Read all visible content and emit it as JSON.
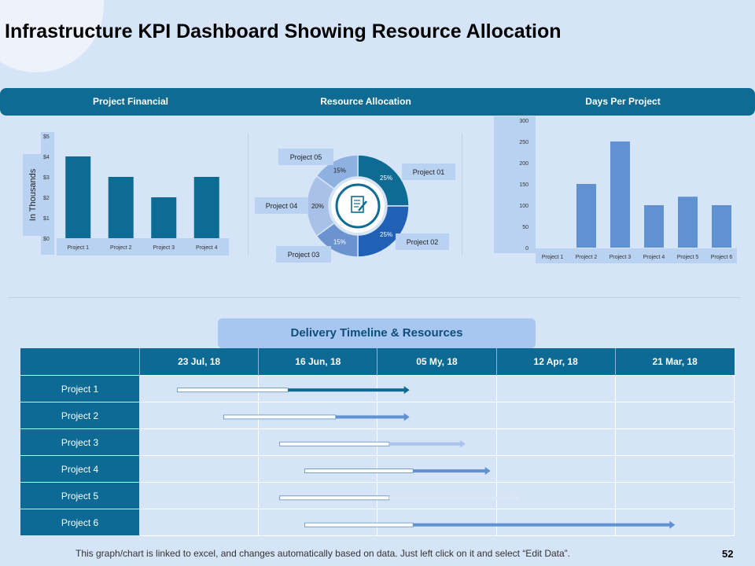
{
  "title": "Infrastructure KPI Dashboard Showing Resource Allocation",
  "header": {
    "col1": "Project Financial",
    "col2": "Resource Allocation",
    "col3": "Days Per Project"
  },
  "colors": {
    "dark_blue": "#0e6b93",
    "mid_blue": "#6092d1",
    "light_bg": "#d6e4f7",
    "label_bg": "#b9d2f2"
  },
  "chart_data": [
    {
      "type": "bar",
      "name": "Project Financial",
      "categories": [
        "Project 1",
        "Project 2",
        "Project 3",
        "Project 4"
      ],
      "values": [
        4,
        3,
        2,
        3
      ],
      "tick_labels": [
        "$0",
        "$1",
        "$2",
        "$3",
        "$4",
        "$5"
      ],
      "ylabel": "In Thousands",
      "ylim": [
        0,
        5
      ]
    },
    {
      "type": "pie",
      "name": "Resource Allocation",
      "labels": [
        "Project 01",
        "Project 02",
        "Project 03",
        "Project 04",
        "Project 05"
      ],
      "values": [
        25,
        25,
        15,
        20,
        15
      ],
      "value_labels": [
        "25%",
        "25%",
        "15%",
        "20%",
        "15%"
      ],
      "colors": [
        "#0e6b93",
        "#2060b5",
        "#6a93cf",
        "#a9c1e6",
        "#8fb1e2"
      ]
    },
    {
      "type": "bar",
      "name": "Days Per Project",
      "categories": [
        "Project 1",
        "Project 2",
        "Project 3",
        "Project 4",
        "Project 5",
        "Project 6"
      ],
      "values": [
        0,
        150,
        250,
        100,
        120,
        100
      ],
      "tick_labels": [
        "0",
        "50",
        "100",
        "150",
        "200",
        "250",
        "300"
      ],
      "ylim": [
        0,
        300
      ]
    },
    {
      "type": "gantt",
      "name": "Delivery Timeline & Resources",
      "columns": [
        "23 Jul, 18",
        "16 Jun, 18",
        "05 My, 18",
        "12 Apr, 18",
        "21 Mar, 18"
      ],
      "rows": [
        {
          "label": "Project 1",
          "start": 0.32,
          "split": 1.25,
          "end": 2.27,
          "color": "#0e6b93"
        },
        {
          "label": "Project 2",
          "start": 0.71,
          "split": 1.65,
          "end": 2.27,
          "color": "#6092d1"
        },
        {
          "label": "Project 3",
          "start": 1.18,
          "split": 2.1,
          "end": 2.74,
          "color": "#a9c5ec"
        },
        {
          "label": "Project 4",
          "start": 1.39,
          "split": 2.3,
          "end": 2.95,
          "color": "#6092d1"
        },
        {
          "label": "Project 5",
          "start": 1.18,
          "split": 2.1,
          "end": 3.2,
          "color": "#dbe7f6"
        },
        {
          "label": "Project 6",
          "start": 1.39,
          "split": 2.3,
          "end": 4.5,
          "color": "#6092d1"
        }
      ]
    }
  ],
  "timeline": {
    "title": "Delivery Timeline & Resources"
  },
  "footer": "This graph/chart is linked to excel, and changes automatically based on data. Just left click on it and select “Edit Data”.",
  "page_number": "52"
}
